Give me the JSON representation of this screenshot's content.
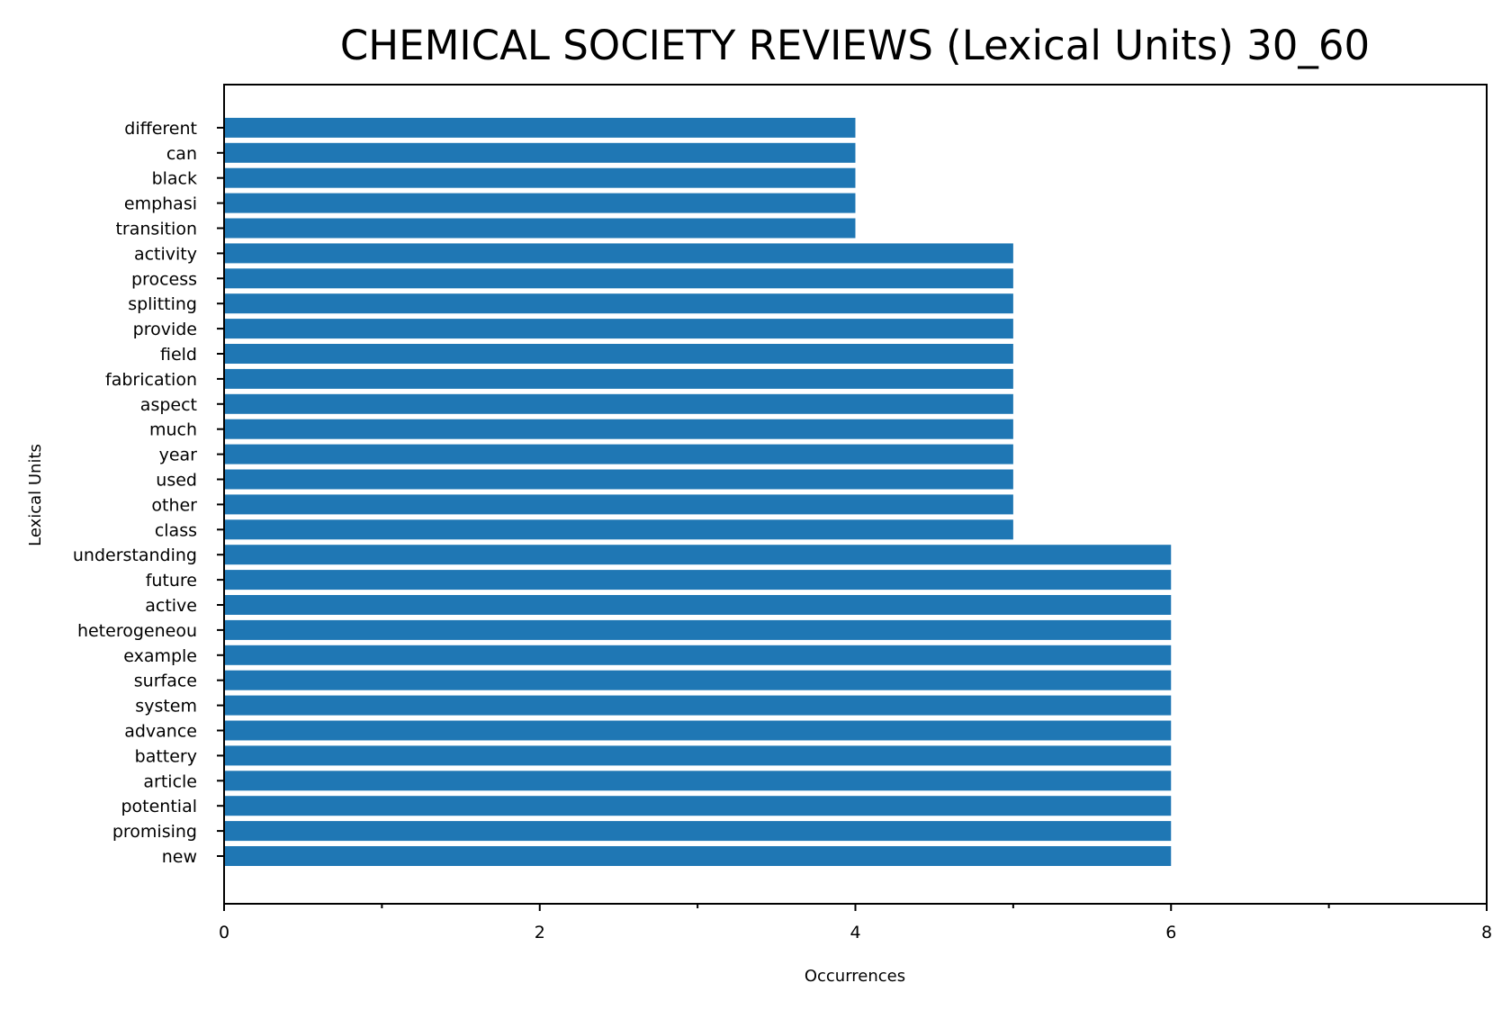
{
  "chart_data": {
    "type": "bar",
    "orientation": "horizontal",
    "title": "CHEMICAL SOCIETY REVIEWS (Lexical Units) 30_60",
    "xlabel": "Occurrences",
    "ylabel": "Lexical Units",
    "xlim": [
      0,
      8
    ],
    "x_ticks": [
      "0",
      "2",
      "4",
      "6",
      "8"
    ],
    "x_minor_ticks": [
      1,
      3,
      5,
      7
    ],
    "grid": false,
    "legend": "none",
    "bar_color": "#1f77b4",
    "categories": [
      "new",
      "promising",
      "potential",
      "article",
      "battery",
      "advance",
      "system",
      "surface",
      "example",
      "heterogeneou",
      "active",
      "future",
      "understanding",
      "class",
      "other",
      "used",
      "year",
      "much",
      "aspect",
      "fabrication",
      "field",
      "provide",
      "splitting",
      "process",
      "activity",
      "transition",
      "emphasi",
      "black",
      "can",
      "different"
    ],
    "values": [
      6,
      6,
      6,
      6,
      6,
      6,
      6,
      6,
      6,
      6,
      6,
      6,
      6,
      5,
      5,
      5,
      5,
      5,
      5,
      5,
      5,
      5,
      5,
      5,
      5,
      4,
      4,
      4,
      4,
      4
    ]
  }
}
